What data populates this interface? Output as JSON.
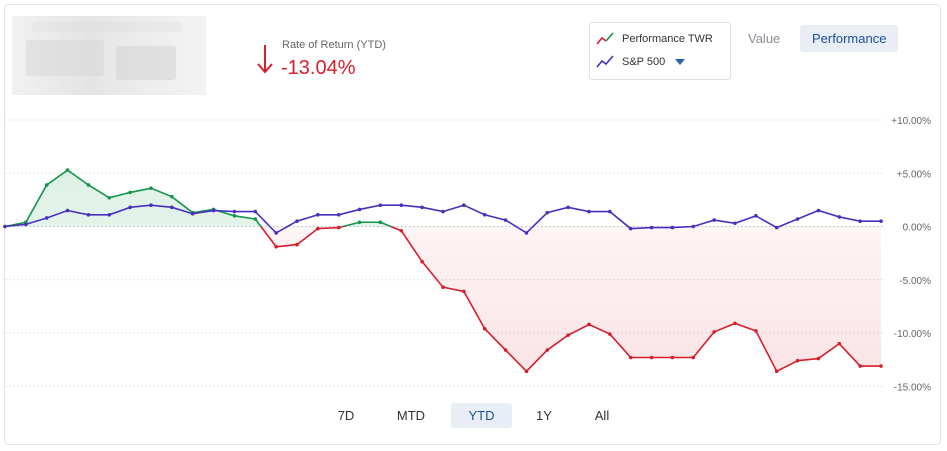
{
  "summary": {
    "ror_label": "Rate of Return (YTD)",
    "ror_value": "-13.04%",
    "ror_direction_icon": "arrow-down-icon",
    "negative_color": "#d71e2b"
  },
  "legend": {
    "items": [
      {
        "label": "Performance TWR",
        "icon": "line-chart-red-green-icon"
      },
      {
        "label": "S&P 500",
        "icon": "line-chart-purple-icon",
        "has_dropdown": true
      }
    ]
  },
  "view_toggle": {
    "options": [
      "Value",
      "Performance"
    ],
    "selected": "Performance"
  },
  "periods": {
    "options": [
      "7D",
      "MTD",
      "YTD",
      "1Y",
      "All"
    ],
    "selected": "YTD"
  },
  "colors": {
    "positive": "#12954a",
    "negative": "#d71e2b",
    "benchmark": "#4a2fbf",
    "accent": "#1d4f9c"
  },
  "chart_data": {
    "type": "line",
    "ylim": [
      -15,
      10
    ],
    "yticks": [
      "+10.00%",
      "+5.00%",
      "0.00%",
      "-5.00%",
      "-10.00%",
      "-15.00%"
    ],
    "grid": true,
    "legend_placement": "top-right",
    "series": [
      {
        "name": "Performance TWR",
        "fill_area": true,
        "values": [
          0,
          0.4,
          3.9,
          5.3,
          3.9,
          2.7,
          3.2,
          3.6,
          2.8,
          1.3,
          1.6,
          1.0,
          0.7,
          -1.9,
          -1.7,
          -0.2,
          -0.1,
          0.4,
          0.4,
          -0.4,
          -3.3,
          -5.7,
          -6.1,
          -9.6,
          -11.6,
          -13.6,
          -11.6,
          -10.2,
          -9.2,
          -10.1,
          -12.3,
          -12.3,
          -12.3,
          -12.3,
          -9.9,
          -9.1,
          -9.8,
          -13.6,
          -12.6,
          -12.4,
          -11.0,
          -13.1,
          -13.1
        ]
      },
      {
        "name": "S&P 500",
        "values": [
          0,
          0.2,
          0.8,
          1.5,
          1.1,
          1.1,
          1.8,
          2.0,
          1.8,
          1.2,
          1.5,
          1.4,
          1.4,
          -0.6,
          0.5,
          1.1,
          1.1,
          1.6,
          2.0,
          2.0,
          1.8,
          1.4,
          2.0,
          1.1,
          0.6,
          -0.6,
          1.3,
          1.8,
          1.4,
          1.4,
          -0.2,
          -0.1,
          -0.1,
          0,
          0.6,
          0.3,
          1.0,
          -0.1,
          0.7,
          1.5,
          0.9,
          0.5,
          0.5
        ]
      }
    ]
  }
}
